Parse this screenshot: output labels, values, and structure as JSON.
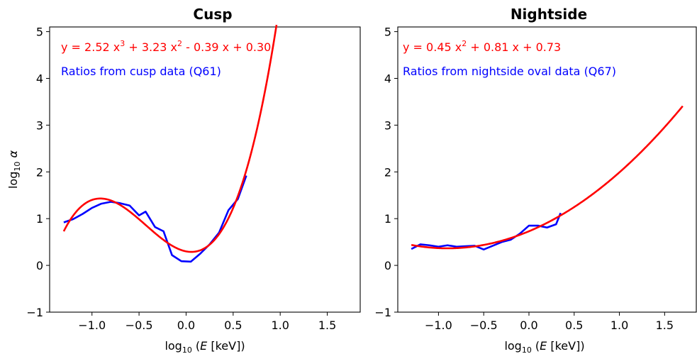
{
  "chart_data": [
    {
      "type": "line",
      "title": "Cusp",
      "xlabel": "log₁₀ (E [keV])",
      "ylabel": "log₁₀ α",
      "xlim": [
        -1.45,
        1.85
      ],
      "ylim": [
        -1,
        5.1
      ],
      "xticks": [
        -1.0,
        -0.5,
        0.0,
        0.5,
        1.0,
        1.5
      ],
      "xtick_labels": [
        "−1.0",
        "−0.5",
        "0.0",
        "0.5",
        "1.0",
        "1.5"
      ],
      "yticks": [
        -1,
        0,
        1,
        2,
        3,
        4,
        5
      ],
      "ytick_labels": [
        "−1",
        "0",
        "1",
        "2",
        "3",
        "4",
        "5"
      ],
      "annotations": [
        {
          "text": "y = 2.52 x³ + 3.23 x² - 0.39 x + 0.30",
          "color": "#ff0000"
        },
        {
          "text": "Ratios from cusp data (Q61)",
          "color": "#0000ff"
        }
      ],
      "series": [
        {
          "color": "#0000ff",
          "x": [
            -1.3,
            -1.2,
            -1.1,
            -1.0,
            -0.9,
            -0.8,
            -0.7,
            -0.6,
            -0.5,
            -0.43,
            -0.33,
            -0.24,
            -0.15,
            -0.05,
            0.05,
            0.15,
            0.25,
            0.35,
            0.45,
            0.55,
            0.64
          ],
          "y": [
            0.92,
            0.99,
            1.1,
            1.23,
            1.32,
            1.36,
            1.33,
            1.28,
            1.07,
            1.15,
            0.82,
            0.73,
            0.22,
            0.09,
            0.08,
            0.25,
            0.45,
            0.7,
            1.18,
            1.42,
            1.92
          ]
        },
        {
          "color": "#ff0000",
          "fit": {
            "kind": "polynomial",
            "coefficients": [
              2.52,
              3.23,
              -0.39,
              0.3
            ],
            "x_start": -1.3,
            "x_end": 0.98
          }
        }
      ]
    },
    {
      "type": "line",
      "title": "Nightside",
      "xlabel": "log₁₀ (E [keV])",
      "xlim": [
        -1.45,
        1.85
      ],
      "ylim": [
        -1,
        5.1
      ],
      "xticks": [
        -1.0,
        -0.5,
        0.0,
        0.5,
        1.0,
        1.5
      ],
      "xtick_labels": [
        "−1.0",
        "−0.5",
        "0.0",
        "0.5",
        "1.0",
        "1.5"
      ],
      "yticks": [
        -1,
        0,
        1,
        2,
        3,
        4,
        5
      ],
      "ytick_labels": [
        "−1",
        "0",
        "1",
        "2",
        "3",
        "4",
        "5"
      ],
      "annotations": [
        {
          "text": "y = 0.45 x² + 0.81 x + 0.73",
          "color": "#ff0000"
        },
        {
          "text": "Ratios from nightside oval data  (Q67)",
          "color": "#0000ff"
        }
      ],
      "series": [
        {
          "color": "#0000ff",
          "x": [
            -1.3,
            -1.2,
            -1.1,
            -1.0,
            -0.9,
            -0.8,
            -0.7,
            -0.6,
            -0.5,
            -0.4,
            -0.3,
            -0.2,
            -0.1,
            0.0,
            0.1,
            0.2,
            0.3,
            0.35
          ],
          "y": [
            0.35,
            0.45,
            0.43,
            0.4,
            0.43,
            0.4,
            0.41,
            0.42,
            0.34,
            0.42,
            0.5,
            0.55,
            0.68,
            0.85,
            0.85,
            0.81,
            0.88,
            1.12
          ]
        },
        {
          "color": "#ff0000",
          "fit": {
            "kind": "polynomial",
            "coefficients": [
              0.45,
              0.81,
              0.73
            ],
            "x_start": -1.3,
            "x_end": 1.7
          }
        }
      ]
    }
  ]
}
